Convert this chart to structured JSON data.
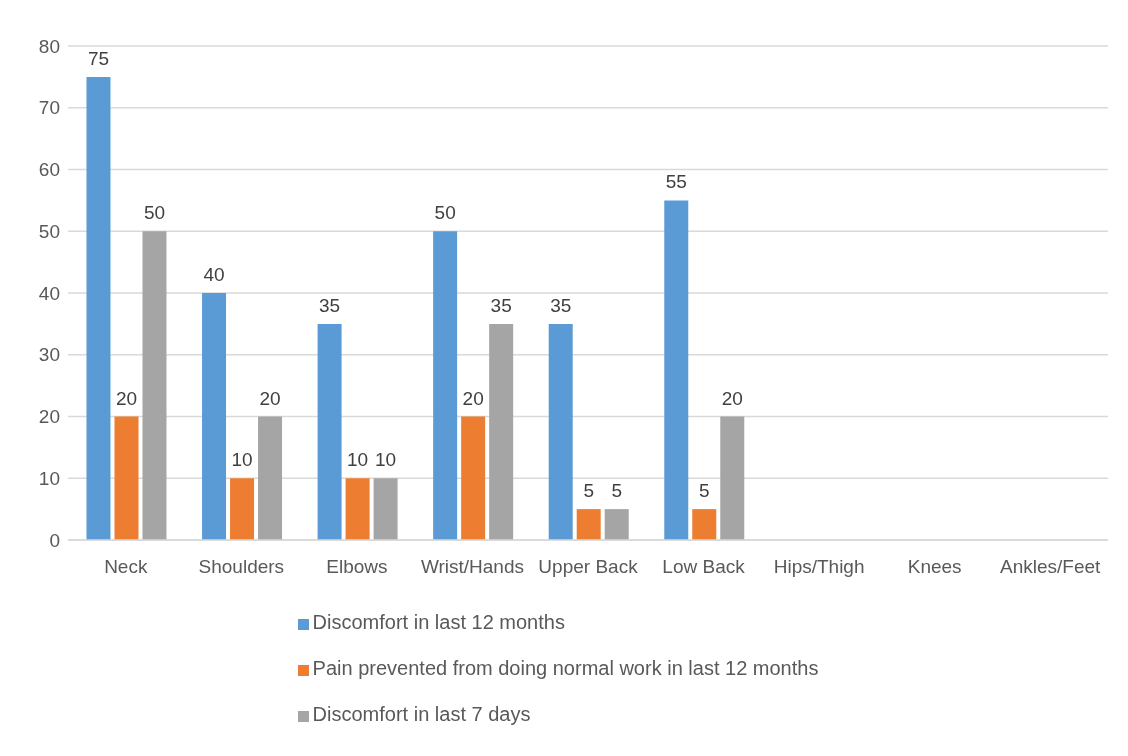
{
  "chart_data": {
    "type": "bar",
    "categories": [
      "Neck",
      "Shoulders",
      "Elbows",
      "Wrist/Hands",
      "Upper Back",
      "Low Back",
      "Hips/Thigh",
      "Knees",
      "Ankles/Feet"
    ],
    "series": [
      {
        "name": "Discomfort in last 12 months",
        "color": "#5b9bd5",
        "values": [
          75,
          40,
          35,
          50,
          35,
          55,
          0,
          0,
          0
        ],
        "value_labels": [
          "75",
          "40",
          "35",
          "50",
          "35",
          "55",
          null,
          null,
          null
        ]
      },
      {
        "name": "Pain prevented from doing normal work in last 12 months",
        "color": "#ed7d31",
        "values": [
          20,
          10,
          10,
          20,
          5,
          5,
          0,
          0,
          0
        ],
        "value_labels": [
          "20",
          "10",
          "10",
          "20",
          "5",
          "5",
          null,
          null,
          null
        ]
      },
      {
        "name": "Discomfort in last 7 days",
        "color": "#a5a5a5",
        "values": [
          50,
          20,
          10,
          35,
          5,
          20,
          0,
          0,
          0
        ],
        "value_labels": [
          "50",
          "20",
          "10",
          "35",
          "5",
          "20",
          null,
          null,
          null
        ]
      }
    ],
    "ylim": [
      0,
      80
    ],
    "yticks": [
      0,
      10,
      20,
      30,
      40,
      50,
      60,
      70,
      80
    ],
    "grid": "y",
    "legend": "bottom"
  }
}
